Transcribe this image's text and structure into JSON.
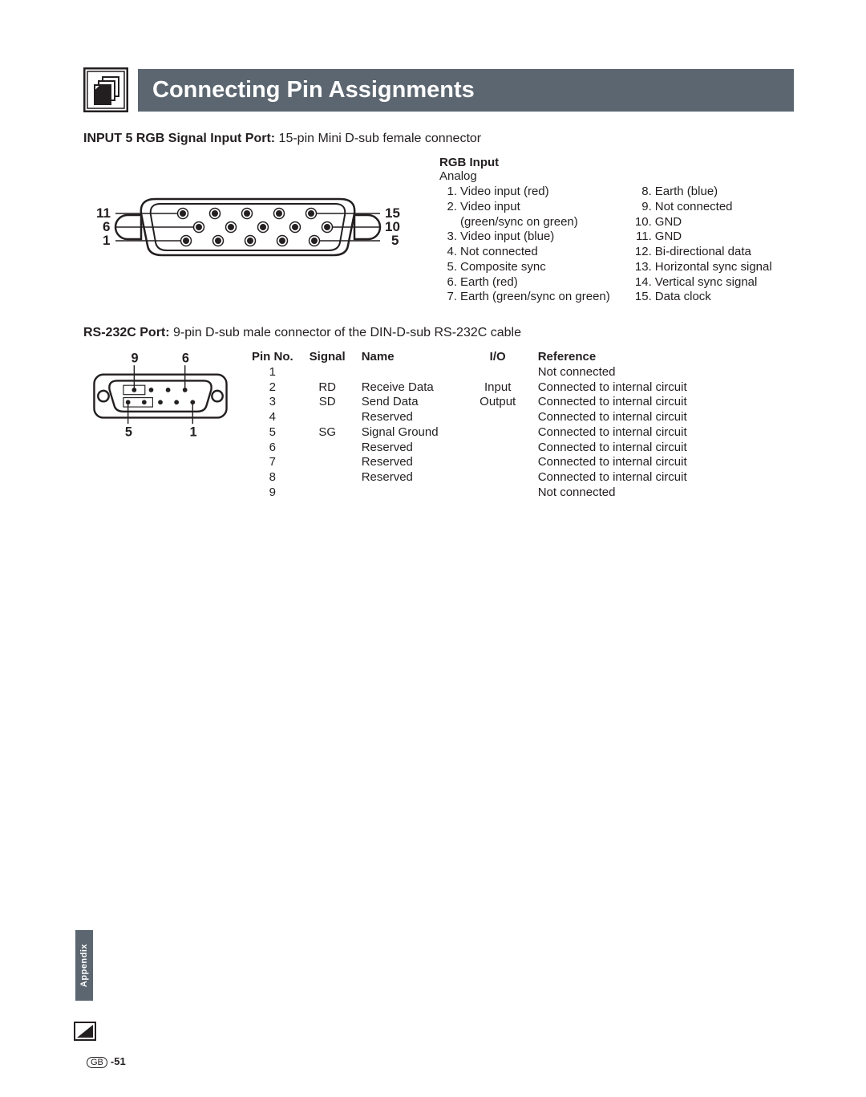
{
  "title": "Connecting Pin Assignments",
  "input5": {
    "heading_bold": "INPUT 5 RGB Signal Input Port:",
    "heading_rest": " 15-pin Mini D-sub female connector",
    "rgb_head": "RGB Input",
    "rgb_sub": "Analog",
    "left_items": [
      {
        "n": "1.",
        "t": "Video input (red)"
      },
      {
        "n": "2.",
        "t": "Video input"
      },
      {
        "n": "",
        "t": "(green/sync on green)"
      },
      {
        "n": "3.",
        "t": "Video input (blue)"
      },
      {
        "n": "4.",
        "t": "Not connected"
      },
      {
        "n": "5.",
        "t": "Composite sync"
      },
      {
        "n": "6.",
        "t": "Earth (red)"
      },
      {
        "n": "7.",
        "t": "Earth (green/sync on green)"
      }
    ],
    "right_items": [
      {
        "n": "8.",
        "t": "Earth (blue)"
      },
      {
        "n": "9.",
        "t": "Not connected"
      },
      {
        "n": "10.",
        "t": "GND"
      },
      {
        "n": "11.",
        "t": "GND"
      },
      {
        "n": "12.",
        "t": "Bi-directional data"
      },
      {
        "n": "13.",
        "t": "Horizontal sync signal"
      },
      {
        "n": "14.",
        "t": "Vertical sync signal"
      },
      {
        "n": "15.",
        "t": "Data clock"
      }
    ],
    "connector_labels": {
      "tl": "11",
      "ml": "6",
      "bl": "1",
      "tr": "15",
      "mr": "10",
      "br": "5"
    }
  },
  "rs232": {
    "heading_bold": "RS-232C Port:",
    "heading_rest": " 9-pin D-sub male connector of the DIN-D-sub RS-232C cable",
    "headers": {
      "pin": "Pin No.",
      "signal": "Signal",
      "name": "Name",
      "io": "I/O",
      "ref": "Reference"
    },
    "rows": [
      {
        "pin": "1",
        "signal": "",
        "name": "",
        "io": "",
        "ref": "Not connected"
      },
      {
        "pin": "2",
        "signal": "RD",
        "name": "Receive Data",
        "io": "Input",
        "ref": "Connected to internal circuit"
      },
      {
        "pin": "3",
        "signal": "SD",
        "name": "Send Data",
        "io": "Output",
        "ref": "Connected to internal circuit"
      },
      {
        "pin": "4",
        "signal": "",
        "name": "Reserved",
        "io": "",
        "ref": "Connected to internal circuit"
      },
      {
        "pin": "5",
        "signal": "SG",
        "name": "Signal Ground",
        "io": "",
        "ref": "Connected to internal circuit"
      },
      {
        "pin": "6",
        "signal": "",
        "name": "Reserved",
        "io": "",
        "ref": "Connected to internal circuit"
      },
      {
        "pin": "7",
        "signal": "",
        "name": "Reserved",
        "io": "",
        "ref": "Connected to internal circuit"
      },
      {
        "pin": "8",
        "signal": "",
        "name": "Reserved",
        "io": "",
        "ref": "Connected to internal circuit"
      },
      {
        "pin": "9",
        "signal": "",
        "name": "",
        "io": "",
        "ref": "Not connected"
      }
    ],
    "connector_labels": {
      "tl": "9",
      "tr": "6",
      "bl": "5",
      "br": "1"
    }
  },
  "side_tab": "Appendix",
  "footer": {
    "gb": "GB",
    "page": "-51"
  },
  "colors": {
    "banner_bg": "#5b6670",
    "text": "#231f20",
    "page_bg": "#ffffff"
  }
}
